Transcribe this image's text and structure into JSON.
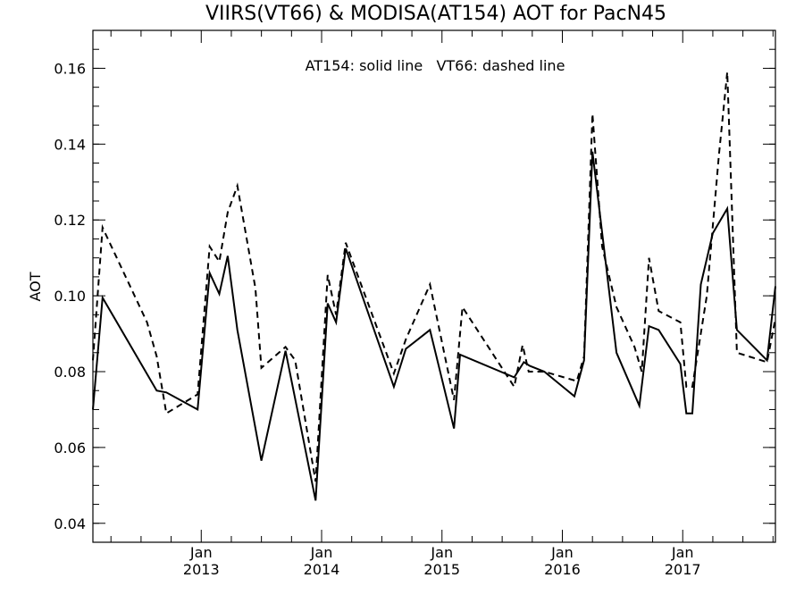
{
  "chart_data": {
    "type": "line",
    "title": "VIIRS(VT66) & MODISA(AT154)  AOT for PacN45",
    "ylabel": "AOT",
    "annotation": "AT154: solid line   VT66: dashed line",
    "xlim": [
      2012.1,
      2017.77
    ],
    "ylim": [
      0.035,
      0.17
    ],
    "x_ticks": [
      {
        "x": 2013.0,
        "month": "Jan",
        "year": "2013"
      },
      {
        "x": 2014.0,
        "month": "Jan",
        "year": "2014"
      },
      {
        "x": 2015.0,
        "month": "Jan",
        "year": "2015"
      },
      {
        "x": 2016.0,
        "month": "Jan",
        "year": "2016"
      },
      {
        "x": 2017.0,
        "month": "Jan",
        "year": "2017"
      }
    ],
    "y_ticks": [
      "0.04",
      "0.06",
      "0.08",
      "0.10",
      "0.12",
      "0.14",
      "0.16"
    ],
    "grid": false,
    "series": [
      {
        "style": "solid",
        "x": [
          2012.1,
          2012.18,
          2012.63,
          2012.71,
          2012.97,
          2013.07,
          2013.15,
          2013.22,
          2013.3,
          2013.5,
          2013.7,
          2013.95,
          2014.05,
          2014.12,
          2014.2,
          2014.6,
          2014.7,
          2014.9,
          2015.1,
          2015.15,
          2015.6,
          2015.68,
          2015.73,
          2015.85,
          2016.1,
          2016.18,
          2016.25,
          2016.45,
          2016.64,
          2016.72,
          2016.8,
          2016.98,
          2017.03,
          2017.08,
          2017.15,
          2017.25,
          2017.37,
          2017.45,
          2017.7,
          2017.77
        ],
        "values": [
          0.07,
          0.0995,
          0.075,
          0.0745,
          0.07,
          0.106,
          0.1005,
          0.1105,
          0.091,
          0.0565,
          0.0855,
          0.046,
          0.098,
          0.093,
          0.1125,
          0.076,
          0.086,
          0.091,
          0.065,
          0.0845,
          0.0785,
          0.0825,
          0.0815,
          0.08,
          0.0735,
          0.083,
          0.138,
          0.085,
          0.071,
          0.092,
          0.091,
          0.082,
          0.069,
          0.069,
          0.103,
          0.1165,
          0.123,
          0.091,
          0.083,
          0.1025
        ]
      },
      {
        "style": "dashed",
        "x": [
          2012.1,
          2012.18,
          2012.55,
          2012.63,
          2012.71,
          2012.97,
          2013.07,
          2013.15,
          2013.22,
          2013.3,
          2013.45,
          2013.5,
          2013.7,
          2013.78,
          2013.95,
          2014.05,
          2014.12,
          2014.2,
          2014.6,
          2014.7,
          2014.9,
          2015.1,
          2015.17,
          2015.6,
          2015.67,
          2015.72,
          2015.85,
          2016.12,
          2016.18,
          2016.25,
          2016.33,
          2016.45,
          2016.6,
          2016.66,
          2016.72,
          2016.8,
          2016.98,
          2017.03,
          2017.08,
          2017.2,
          2017.3,
          2017.37,
          2017.45,
          2017.7,
          2017.77
        ],
        "values": [
          0.083,
          0.118,
          0.093,
          0.084,
          0.069,
          0.074,
          0.113,
          0.109,
          0.122,
          0.129,
          0.102,
          0.081,
          0.0865,
          0.083,
          0.051,
          0.1055,
          0.095,
          0.114,
          0.0795,
          0.0885,
          0.103,
          0.0725,
          0.097,
          0.076,
          0.087,
          0.08,
          0.08,
          0.0775,
          0.084,
          0.148,
          0.113,
          0.097,
          0.0865,
          0.08,
          0.11,
          0.096,
          0.093,
          0.076,
          0.076,
          0.1,
          0.137,
          0.159,
          0.085,
          0.0825,
          0.094
        ]
      }
    ]
  }
}
